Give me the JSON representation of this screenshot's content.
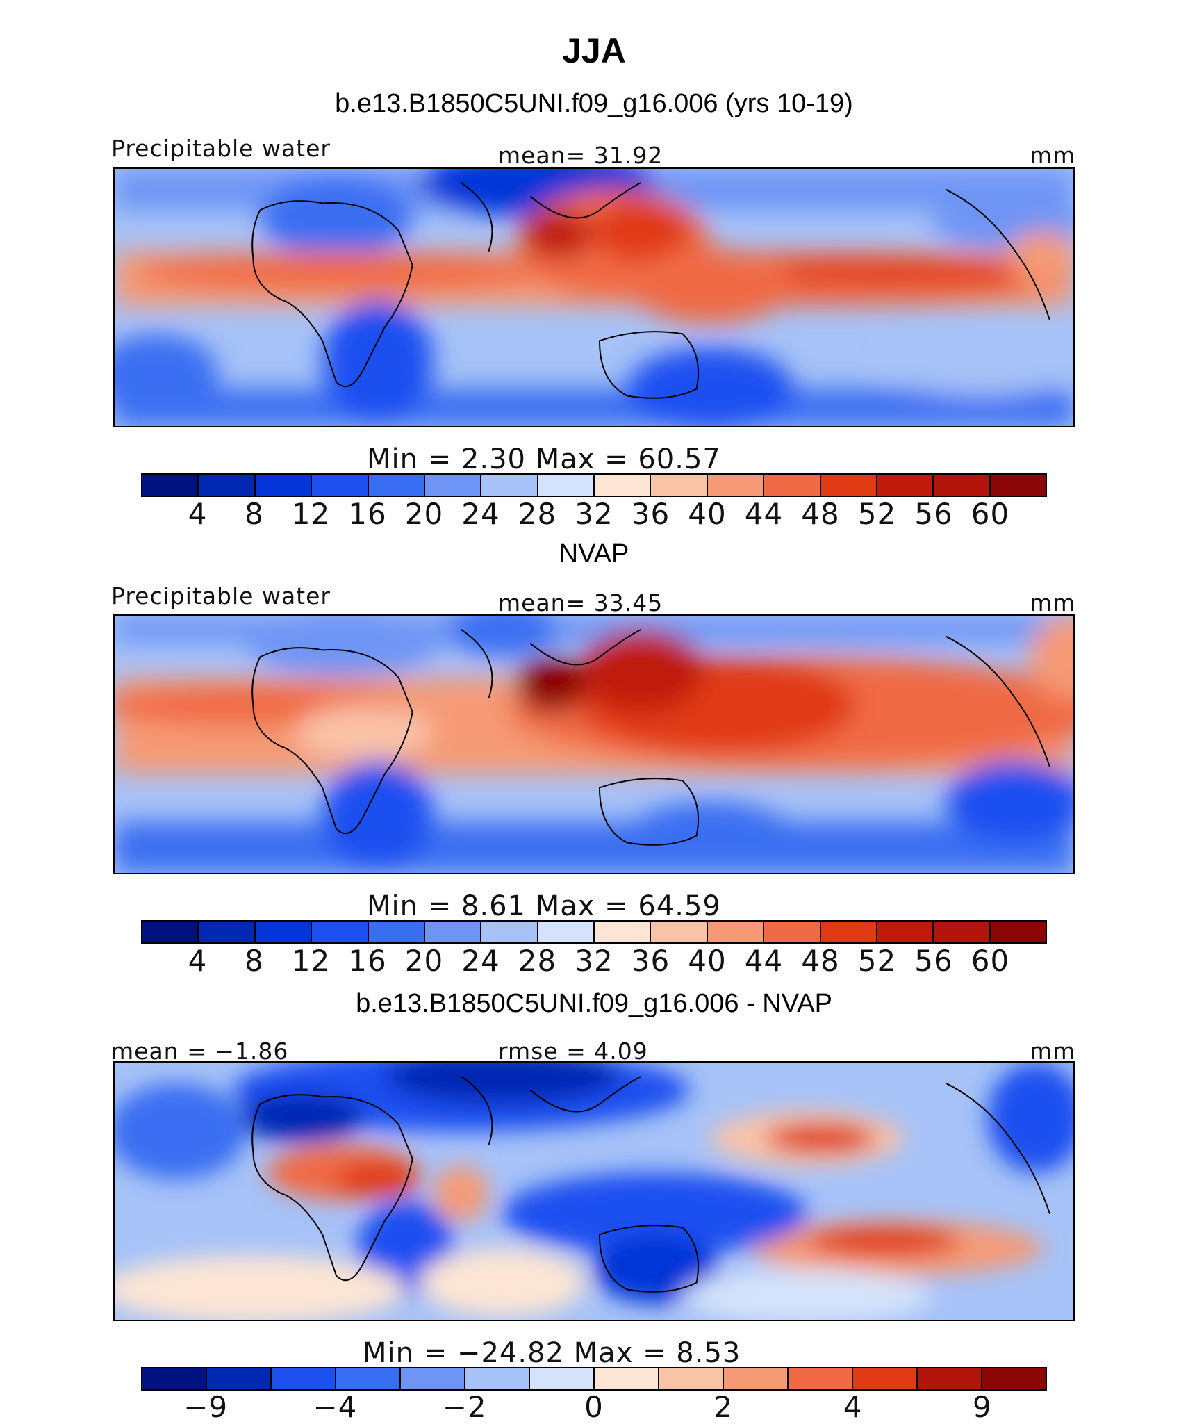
{
  "page": {
    "title": "JJA"
  },
  "colors": {
    "palette_main": [
      "#00127f",
      "#0028b3",
      "#0535d8",
      "#1e50f0",
      "#3a6ef2",
      "#6e95f5",
      "#a6c2f7",
      "#d4e3fb",
      "#fce5d4",
      "#f9c3a8",
      "#f59a74",
      "#f06a45",
      "#e03a15",
      "#c01a0a",
      "#b1150c",
      "#8a0606"
    ],
    "palette_diff": [
      "#00127f",
      "#0028b3",
      "#1e50f0",
      "#3a6ef2",
      "#6e95f5",
      "#a6c2f7",
      "#d4e3fb",
      "#fce5d4",
      "#f9c3a8",
      "#f59a74",
      "#f06a45",
      "#e03a15",
      "#b1150c",
      "#8a0606"
    ]
  },
  "chart_data": [
    {
      "type": "heatmap",
      "title": "b.e13.B1850C5UNI.f09_g16.006 (yrs 10-19)",
      "variable": "Precipitable water",
      "stat_left": "",
      "stat_center": "mean=   31.92",
      "units": "mm",
      "min_max": "Min  =     2.30  Max  =    60.57",
      "colorbar_ticks": [
        "4",
        "8",
        "12",
        "16",
        "20",
        "24",
        "28",
        "32",
        "36",
        "40",
        "44",
        "48",
        "52",
        "56",
        "60"
      ],
      "mean": 31.92,
      "min": 2.3,
      "max": 60.57
    },
    {
      "type": "heatmap",
      "title": "NVAP",
      "variable": "Precipitable water",
      "stat_left": "",
      "stat_center": "mean=   33.45",
      "units": "mm",
      "min_max": "Min  =     8.61  Max  =    64.59",
      "colorbar_ticks": [
        "4",
        "8",
        "12",
        "16",
        "20",
        "24",
        "28",
        "32",
        "36",
        "40",
        "44",
        "48",
        "52",
        "56",
        "60"
      ],
      "mean": 33.45,
      "min": 8.61,
      "max": 64.59
    },
    {
      "type": "heatmap",
      "title": "b.e13.B1850C5UNI.f09_g16.006 - NVAP",
      "variable": "",
      "stat_left": "mean  =   −1.86",
      "stat_center": "rmse  =    4.09",
      "units": "mm",
      "min_max": "Min  =  −24.82  Max  =     8.53",
      "colorbar_ticks": [
        "−9",
        "−4",
        "−2",
        "0",
        "2",
        "4",
        "9"
      ],
      "mean": -1.86,
      "rmse": 4.09,
      "min": -24.82,
      "max": 8.53
    }
  ]
}
